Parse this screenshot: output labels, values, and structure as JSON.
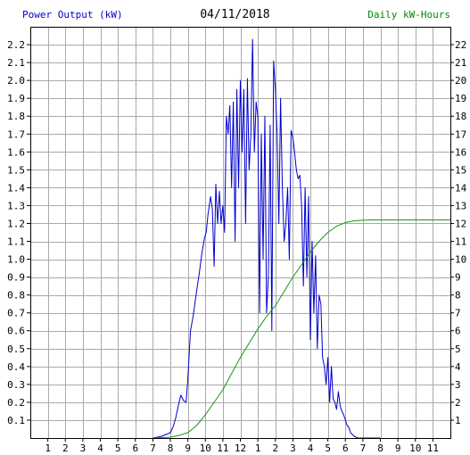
{
  "header": {
    "left_title": "Power Output (kW)",
    "date": "04/11/2018",
    "right_title": "Daily kW-Hours"
  },
  "colors": {
    "left_title": "#0000cc",
    "right_title": "#008800",
    "power_line": "#0000cc",
    "energy_line": "#119911",
    "grid": "#aaaaaa",
    "frame": "#000000",
    "background": "#ffffff"
  },
  "chart_data": {
    "type": "line",
    "title": "04/11/2018",
    "ylabel": "Power Output (kW)",
    "y2label": "Daily kW-Hours",
    "grid": true,
    "x_domain_hours": [
      0,
      24
    ],
    "x_ticks": [
      "1",
      "2",
      "3",
      "4",
      "5",
      "6",
      "7",
      "8",
      "9",
      "10",
      "11",
      "12",
      "1",
      "2",
      "3",
      "4",
      "5",
      "6",
      "7",
      "8",
      "9",
      "10",
      "11"
    ],
    "ylim": [
      0,
      2.3
    ],
    "y_ticks": [
      "0.1",
      "0.2",
      "0.3",
      "0.4",
      "0.5",
      "0.6",
      "0.7",
      "0.8",
      "0.9",
      "1.0",
      "1.1",
      "1.2",
      "1.3",
      "1.4",
      "1.5",
      "1.6",
      "1.7",
      "1.8",
      "1.9",
      "2.0",
      "2.1",
      "2.2"
    ],
    "y2lim": [
      0,
      23
    ],
    "y2_ticks": [
      "1",
      "2",
      "3",
      "4",
      "5",
      "6",
      "7",
      "8",
      "9",
      "10",
      "11",
      "12",
      "13",
      "14",
      "15",
      "16",
      "17",
      "18",
      "19",
      "20",
      "21",
      "22"
    ],
    "series": [
      {
        "name": "Power Output (kW)",
        "axis": "left",
        "x": [
          7.0,
          7.5,
          7.75,
          8.0,
          8.15,
          8.3,
          8.5,
          8.6,
          8.75,
          8.9,
          9.0,
          9.15,
          9.3,
          9.5,
          9.65,
          9.8,
          9.95,
          10.05,
          10.15,
          10.3,
          10.4,
          10.5,
          10.6,
          10.7,
          10.8,
          10.9,
          11.0,
          11.1,
          11.2,
          11.3,
          11.4,
          11.5,
          11.6,
          11.7,
          11.8,
          11.9,
          12.0,
          12.1,
          12.2,
          12.3,
          12.4,
          12.5,
          12.6,
          12.7,
          12.8,
          12.9,
          13.0,
          13.1,
          13.2,
          13.3,
          13.4,
          13.5,
          13.6,
          13.7,
          13.8,
          13.9,
          14.0,
          14.1,
          14.2,
          14.3,
          14.4,
          14.5,
          14.6,
          14.7,
          14.8,
          14.9,
          15.0,
          15.1,
          15.2,
          15.3,
          15.4,
          15.5,
          15.6,
          15.7,
          15.8,
          15.9,
          16.0,
          16.1,
          16.2,
          16.3,
          16.4,
          16.5,
          16.6,
          16.7,
          16.8,
          16.9,
          17.0,
          17.1,
          17.2,
          17.3,
          17.4,
          17.5,
          17.6,
          17.7,
          17.8,
          17.9,
          18.0,
          18.1,
          18.2,
          18.3,
          18.5,
          18.7,
          18.85,
          19.0,
          19.2,
          19.4,
          19.55,
          19.7,
          19.85,
          20.0
        ],
        "y": [
          0.0,
          0.01,
          0.02,
          0.03,
          0.06,
          0.11,
          0.2,
          0.24,
          0.21,
          0.2,
          0.33,
          0.6,
          0.68,
          0.82,
          0.92,
          1.03,
          1.12,
          1.15,
          1.25,
          1.35,
          1.28,
          0.96,
          1.42,
          1.2,
          1.38,
          1.2,
          1.3,
          1.15,
          1.8,
          1.7,
          1.86,
          1.4,
          1.88,
          1.1,
          1.95,
          1.4,
          2.0,
          1.6,
          1.95,
          1.2,
          2.01,
          1.5,
          1.7,
          2.23,
          1.6,
          1.88,
          1.8,
          0.7,
          1.7,
          1.0,
          1.8,
          0.7,
          0.9,
          1.75,
          0.6,
          2.11,
          1.95,
          1.7,
          1.2,
          1.9,
          1.4,
          1.1,
          1.2,
          1.4,
          1.0,
          1.72,
          1.68,
          1.6,
          1.5,
          1.45,
          1.47,
          1.3,
          0.85,
          1.4,
          0.9,
          1.35,
          0.55,
          1.1,
          0.7,
          1.02,
          0.5,
          0.8,
          0.75,
          0.45,
          0.4,
          0.3,
          0.45,
          0.2,
          0.4,
          0.22,
          0.2,
          0.16,
          0.26,
          0.18,
          0.15,
          0.13,
          0.1,
          0.07,
          0.06,
          0.03,
          0.01,
          0.0,
          0.0,
          0.0,
          0.0,
          0.0,
          0.0,
          0.0,
          0.0,
          0.0
        ]
      },
      {
        "name": "Daily kW-Hours",
        "axis": "right",
        "x": [
          7.0,
          8.0,
          8.5,
          9.0,
          9.5,
          10.0,
          10.5,
          11.0,
          11.5,
          12.0,
          12.5,
          13.0,
          13.5,
          14.0,
          14.5,
          15.0,
          15.5,
          16.0,
          16.5,
          17.0,
          17.5,
          18.0,
          18.5,
          19.0,
          19.5,
          20.0,
          21.0,
          22.0,
          23.0,
          24.0
        ],
        "y": [
          0.0,
          0.05,
          0.15,
          0.3,
          0.7,
          1.3,
          2.0,
          2.7,
          3.6,
          4.5,
          5.3,
          6.1,
          6.8,
          7.4,
          8.2,
          9.0,
          9.7,
          10.4,
          11.0,
          11.5,
          11.85,
          12.05,
          12.15,
          12.18,
          12.2,
          12.2,
          12.2,
          12.2,
          12.2,
          12.2
        ]
      }
    ]
  }
}
